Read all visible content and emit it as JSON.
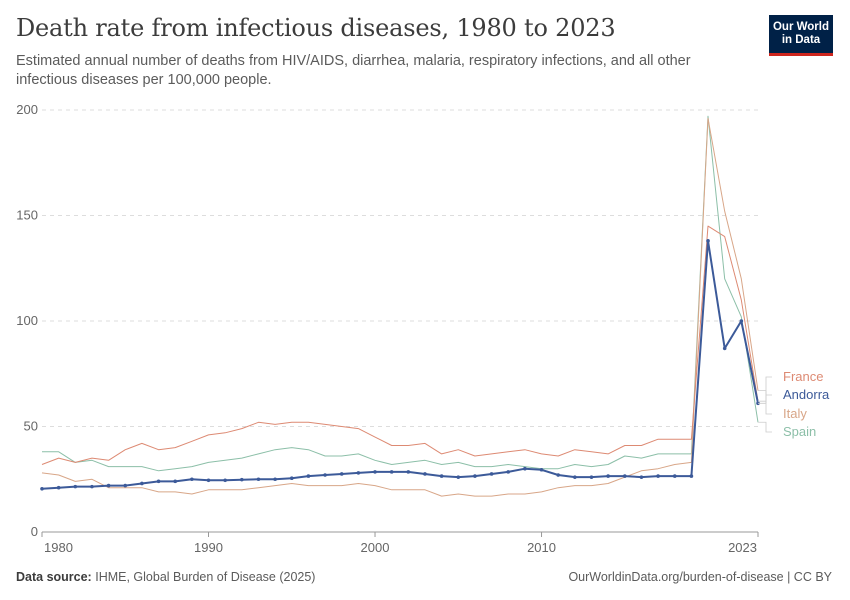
{
  "title": "Death rate from infectious diseases, 1980 to 2023",
  "subtitle": "Estimated annual number of deaths from HIV/AIDS, diarrhea, malaria, respiratory infections, and all other infectious diseases per 100,000 people.",
  "logo": {
    "line1": "Our World",
    "line2": "in Data"
  },
  "footer": {
    "source_label": "Data source:",
    "source_text": "IHME, Global Burden of Disease (2025)",
    "url": "OurWorldinData.org/burden-of-disease | CC BY"
  },
  "chart_data": {
    "type": "line",
    "x": [
      1980,
      1981,
      1982,
      1983,
      1984,
      1985,
      1986,
      1987,
      1988,
      1989,
      1990,
      1991,
      1992,
      1993,
      1994,
      1995,
      1996,
      1997,
      1998,
      1999,
      2000,
      2001,
      2002,
      2003,
      2004,
      2005,
      2006,
      2007,
      2008,
      2009,
      2010,
      2011,
      2012,
      2013,
      2014,
      2015,
      2016,
      2017,
      2018,
      2019,
      2020,
      2021,
      2022,
      2023
    ],
    "xlim": [
      1980,
      2023
    ],
    "ylim": [
      0,
      200
    ],
    "yticks": [
      0,
      50,
      100,
      150,
      200
    ],
    "xticks": [
      1980,
      1990,
      2000,
      2010,
      2023
    ],
    "grid": true,
    "legend_placement": "right",
    "series": [
      {
        "name": "France",
        "color": "#dd8a73",
        "width": 1,
        "values": [
          32,
          35,
          33,
          35,
          34,
          39,
          42,
          39,
          40,
          43,
          46,
          47,
          49,
          52,
          51,
          52,
          52,
          51,
          50,
          49,
          45,
          41,
          41,
          42,
          37,
          39,
          36,
          37,
          38,
          39,
          37,
          36,
          39,
          38,
          37,
          41,
          41,
          44,
          44,
          44,
          145,
          140,
          110,
          62
        ]
      },
      {
        "name": "Andorra",
        "color": "#3c5a99",
        "width": 2,
        "markers": true,
        "values": [
          20.5,
          21,
          21.5,
          21.5,
          22,
          22,
          23,
          24,
          24,
          25,
          24.5,
          24.5,
          24.8,
          25,
          25,
          25.5,
          26.5,
          27,
          27.5,
          28,
          28.5,
          28.5,
          28.5,
          27.5,
          26.5,
          26,
          26.5,
          27.5,
          28.5,
          30,
          29.5,
          27,
          26,
          26,
          26.5,
          26.5,
          26,
          26.5,
          26.5,
          26.5,
          138,
          87,
          100,
          61
        ]
      },
      {
        "name": "Italy",
        "color": "#d8a688",
        "width": 1,
        "values": [
          28,
          27,
          24,
          25,
          21,
          21,
          21,
          19,
          19,
          18,
          20,
          20,
          20,
          21,
          22,
          23,
          22,
          22,
          22,
          23,
          22,
          20,
          20,
          20,
          17,
          18,
          17,
          17,
          18,
          18,
          19,
          21,
          22,
          22,
          23,
          26,
          29,
          30,
          32,
          33,
          196,
          152,
          120,
          67
        ]
      },
      {
        "name": "Spain",
        "color": "#8cbfa8",
        "width": 1,
        "values": [
          38,
          38,
          33,
          34,
          31,
          31,
          31,
          29,
          30,
          31,
          33,
          34,
          35,
          37,
          39,
          40,
          39,
          36,
          36,
          37,
          34,
          32,
          33,
          34,
          32,
          33,
          31,
          31,
          32,
          31,
          30,
          30,
          32,
          31,
          32,
          36,
          35,
          37,
          37,
          37,
          197,
          120,
          102,
          52
        ]
      }
    ]
  }
}
